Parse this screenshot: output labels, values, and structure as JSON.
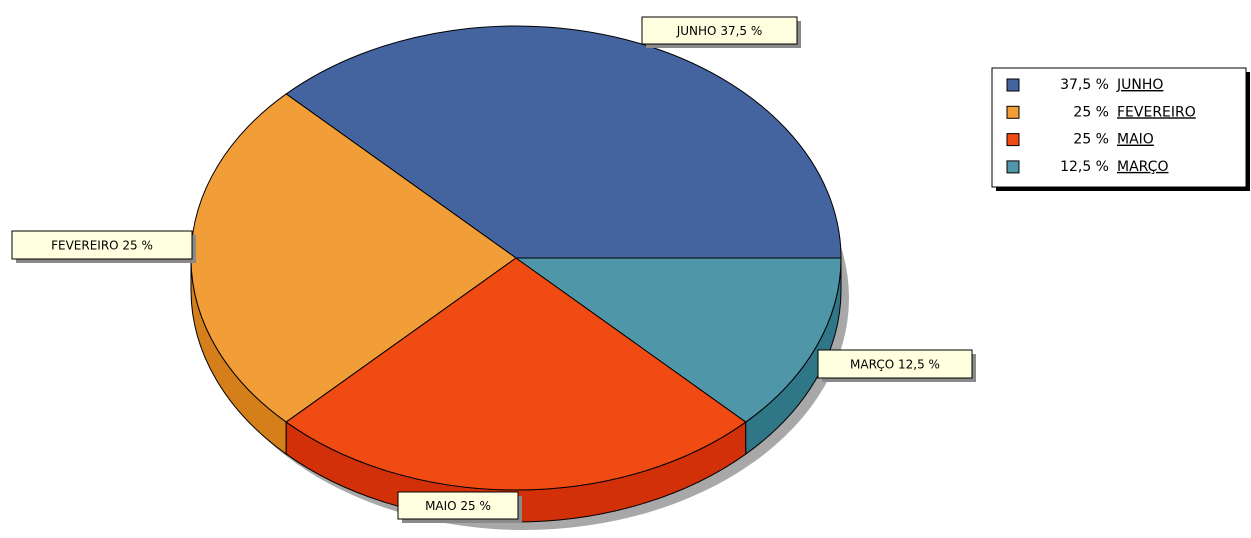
{
  "chart_data": {
    "type": "pie",
    "categories": [
      "JUNHO",
      "FEVEREIRO",
      "MAIO",
      "MARÇO"
    ],
    "values": [
      37.5,
      25,
      25,
      12.5
    ],
    "value_labels": [
      "37,5 %",
      "25 %",
      "25 %",
      "12,5 %"
    ],
    "labels": [
      "JUNHO 37,5 %",
      "FEVEREIRO 25 %",
      "MAIO 25 %",
      "MARÇO 12,5 %"
    ],
    "colors": [
      "#4464a0",
      "#f29e38",
      "#ef4b13",
      "#4f97a8"
    ],
    "side_colors": [
      "#2e4a80",
      "#d47f1a",
      "#d23008",
      "#2f7686"
    ],
    "legend": "top-right"
  }
}
